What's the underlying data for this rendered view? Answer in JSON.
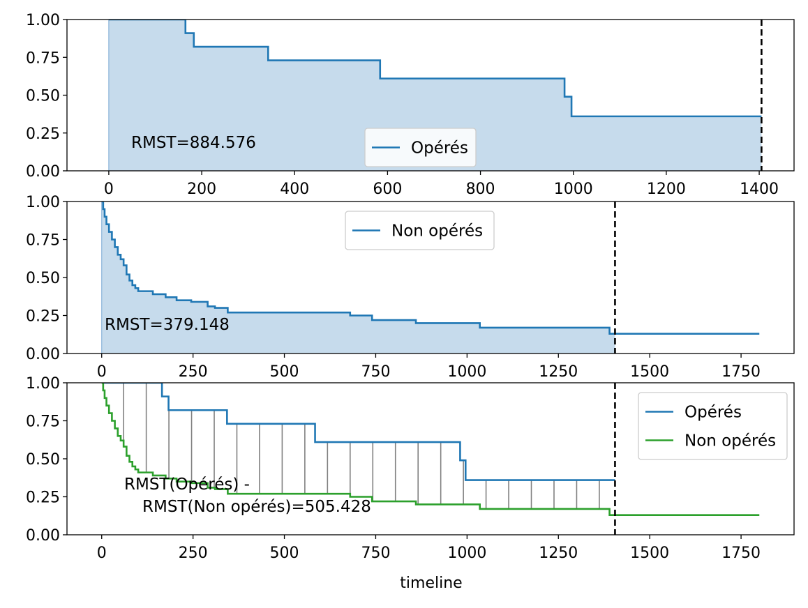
{
  "colors": {
    "operes": "#1f77b4",
    "non_operes": "#2ca02c",
    "fill": "#c6dbec",
    "gap": "#808080",
    "rmst_line": "#000000"
  },
  "xlabel": "timeline",
  "chart_data": [
    {
      "type": "line",
      "xlim": [
        -90,
        1475
      ],
      "ylim": [
        0,
        1
      ],
      "xticks": [
        0,
        200,
        400,
        600,
        800,
        1000,
        1200,
        1400
      ],
      "yticks": [
        "0.00",
        "0.25",
        "0.50",
        "0.75",
        "1.00"
      ],
      "legend": {
        "entries": [
          "Opérés"
        ],
        "position": "lower-center"
      },
      "annotation": "RMST=884.576",
      "rmst_t": 1405,
      "series": [
        {
          "name": "Opérés",
          "color": "operes",
          "shade": true,
          "x": [
            0,
            165,
            183,
            343,
            584,
            981,
            996,
            1405
          ],
          "y": [
            1.0,
            0.91,
            0.82,
            0.73,
            0.61,
            0.49,
            0.36,
            0.36
          ]
        }
      ]
    },
    {
      "type": "line",
      "xlim": [
        -95,
        1895
      ],
      "ylim": [
        0,
        1
      ],
      "xticks": [
        0,
        250,
        500,
        750,
        1000,
        1250,
        1500,
        1750
      ],
      "yticks": [
        "0.00",
        "0.25",
        "0.50",
        "0.75",
        "1.00"
      ],
      "legend": {
        "entries": [
          "Non opérés"
        ],
        "position": "upper-center"
      },
      "annotation": "RMST=379.148",
      "rmst_t": 1405,
      "series": [
        {
          "name": "Non opérés",
          "color": "operes",
          "shade": true,
          "x": [
            0,
            4,
            8,
            13,
            20,
            28,
            36,
            44,
            52,
            60,
            68,
            76,
            84,
            92,
            100,
            115,
            140,
            175,
            205,
            245,
            290,
            310,
            345,
            520,
            680,
            740,
            860,
            1035,
            1390,
            1405,
            1800
          ],
          "y": [
            1.0,
            0.95,
            0.9,
            0.85,
            0.8,
            0.75,
            0.7,
            0.65,
            0.62,
            0.58,
            0.52,
            0.48,
            0.45,
            0.43,
            0.41,
            0.41,
            0.39,
            0.37,
            0.35,
            0.34,
            0.31,
            0.3,
            0.27,
            0.27,
            0.25,
            0.22,
            0.2,
            0.17,
            0.13,
            0.13,
            0.13
          ]
        }
      ]
    },
    {
      "type": "line",
      "xlim": [
        -95,
        1895
      ],
      "ylim": [
        0,
        1
      ],
      "xticks": [
        0,
        250,
        500,
        750,
        1000,
        1250,
        1500,
        1750
      ],
      "yticks": [
        "0.00",
        "0.25",
        "0.50",
        "0.75",
        "1.00"
      ],
      "legend": {
        "entries": [
          "Opérés",
          "Non opérés"
        ],
        "position": "upper-right"
      },
      "annotation": [
        "RMST(Opérés) -",
        "RMST(Non opérés)=505.428"
      ],
      "rmst_t": 1405,
      "series": [
        {
          "name": "Opérés",
          "color": "operes",
          "x": [
            0,
            165,
            183,
            343,
            584,
            981,
            996,
            1405
          ],
          "y": [
            1.0,
            0.91,
            0.82,
            0.73,
            0.61,
            0.49,
            0.36,
            0.36
          ]
        },
        {
          "name": "Non opérés",
          "color": "non_operes",
          "x": [
            0,
            4,
            8,
            13,
            20,
            28,
            36,
            44,
            52,
            60,
            68,
            76,
            84,
            92,
            100,
            115,
            140,
            175,
            205,
            245,
            290,
            310,
            345,
            520,
            680,
            740,
            860,
            1035,
            1390,
            1405,
            1800
          ],
          "y": [
            1.0,
            0.95,
            0.9,
            0.85,
            0.8,
            0.75,
            0.7,
            0.65,
            0.62,
            0.58,
            0.52,
            0.48,
            0.45,
            0.43,
            0.41,
            0.41,
            0.39,
            0.37,
            0.35,
            0.34,
            0.31,
            0.3,
            0.27,
            0.27,
            0.25,
            0.22,
            0.2,
            0.17,
            0.13,
            0.13,
            0.13
          ]
        }
      ]
    }
  ]
}
